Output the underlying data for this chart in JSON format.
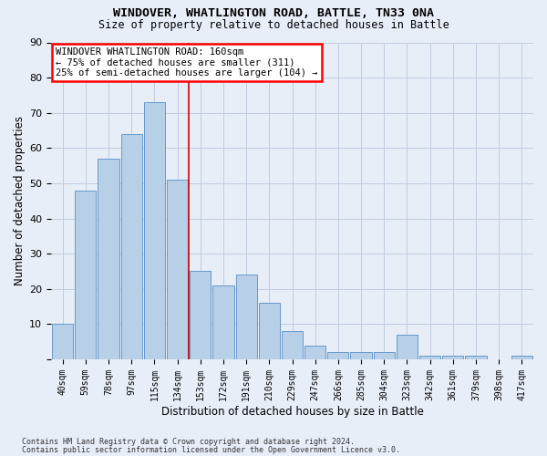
{
  "title1": "WINDOVER, WHATLINGTON ROAD, BATTLE, TN33 0NA",
  "title2": "Size of property relative to detached houses in Battle",
  "xlabel": "Distribution of detached houses by size in Battle",
  "ylabel": "Number of detached properties",
  "categories": [
    "40sqm",
    "59sqm",
    "78sqm",
    "97sqm",
    "115sqm",
    "134sqm",
    "153sqm",
    "172sqm",
    "191sqm",
    "210sqm",
    "229sqm",
    "247sqm",
    "266sqm",
    "285sqm",
    "304sqm",
    "323sqm",
    "342sqm",
    "361sqm",
    "379sqm",
    "398sqm",
    "417sqm"
  ],
  "values": [
    10,
    48,
    57,
    64,
    73,
    51,
    25,
    21,
    24,
    16,
    8,
    4,
    2,
    2,
    2,
    7,
    1,
    1,
    1,
    0,
    1
  ],
  "bar_color": "#b8cfe8",
  "bar_edgecolor": "#6699cc",
  "ylim": [
    0,
    90
  ],
  "yticks": [
    0,
    10,
    20,
    30,
    40,
    50,
    60,
    70,
    80,
    90
  ],
  "vline_x_idx": 5.5,
  "annotation_line1": "WINDOVER WHATLINGTON ROAD: 160sqm",
  "annotation_line2": "← 75% of detached houses are smaller (311)",
  "annotation_line3": "25% of semi-detached houses are larger (104) →",
  "footnote1": "Contains HM Land Registry data © Crown copyright and database right 2024.",
  "footnote2": "Contains public sector information licensed under the Open Government Licence v3.0.",
  "background_color": "#e8eef8",
  "grid_color": "#c0cce0",
  "vline_color": "#cc0000"
}
